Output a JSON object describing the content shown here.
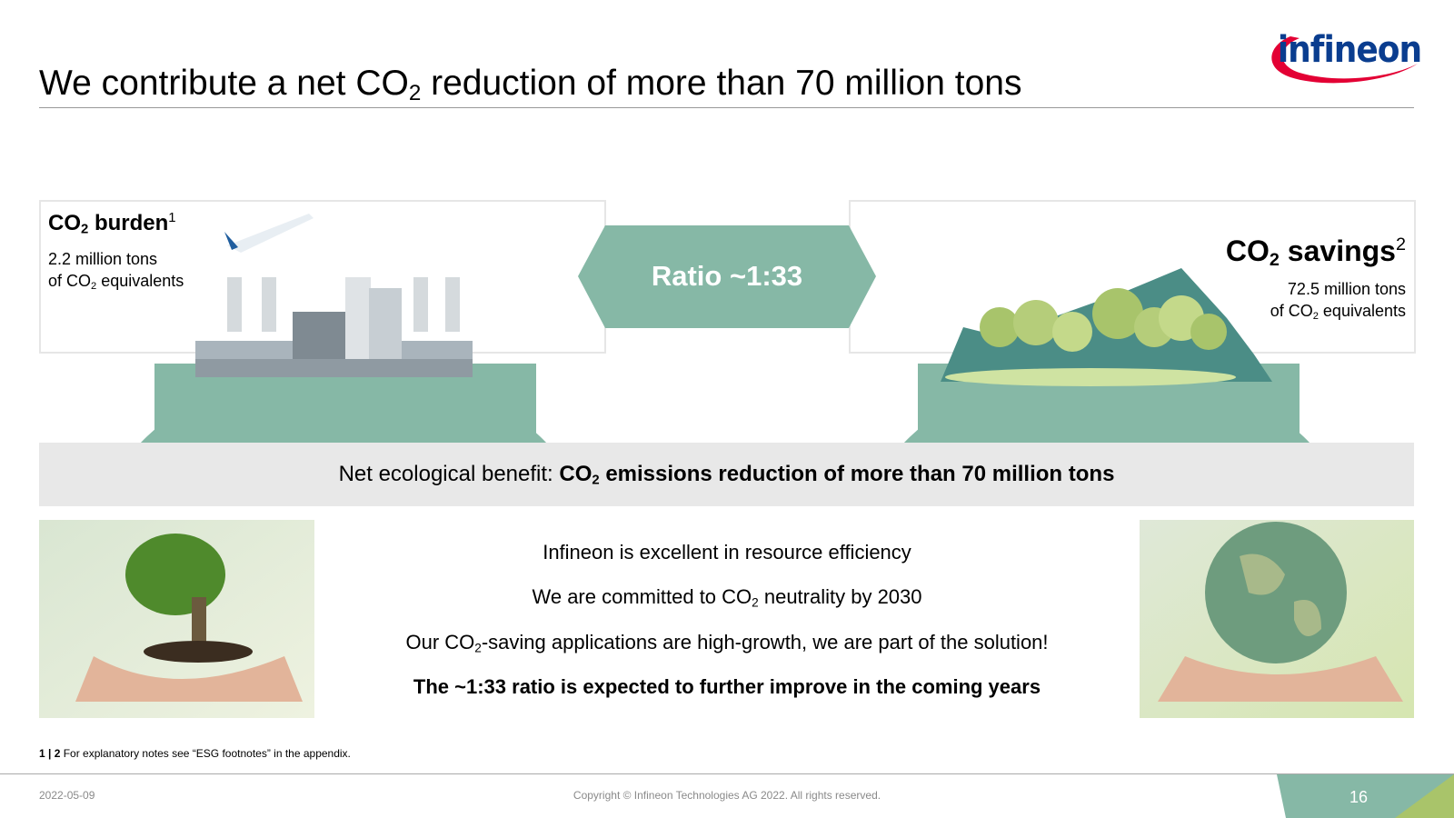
{
  "header": {
    "title": [
      "We contribute a net CO",
      "2",
      " reduction of more than 70 million tons"
    ],
    "logo": "infineon"
  },
  "burden": {
    "heading": [
      "CO",
      "2",
      " burden",
      "1"
    ],
    "line1": "2.2 million tons",
    "line2": [
      "of CO",
      "2",
      " equivalents"
    ]
  },
  "ratio": "Ratio ~1:33",
  "savings": {
    "heading": [
      "CO",
      "2",
      " savings",
      "2"
    ],
    "line1": "72.5 million tons",
    "line2": [
      "of CO",
      "2",
      " equivalents"
    ]
  },
  "benefit": {
    "label": "Net ecological benefit: ",
    "bold": [
      "CO",
      "2",
      " emissions reduction of more than 70 million tons"
    ]
  },
  "statements": [
    [
      "Infineon is excellent in resource efficiency"
    ],
    [
      "We are committed to CO",
      "2",
      " neutrality by 2030"
    ],
    [
      "Our CO",
      "2",
      "-saving applications are high-growth, we are part of the solution!"
    ],
    [
      "The ~1:33 ratio is expected to further improve in the coming years"
    ]
  ],
  "footnote": {
    "marks": "1 | 2",
    "text": " For explanatory notes see “ESG footnotes” in the appendix."
  },
  "footer": {
    "date": "2022-05-09",
    "copyright": "Copyright © Infineon Technologies AG 2022. All rights reserved.",
    "page": "16"
  }
}
